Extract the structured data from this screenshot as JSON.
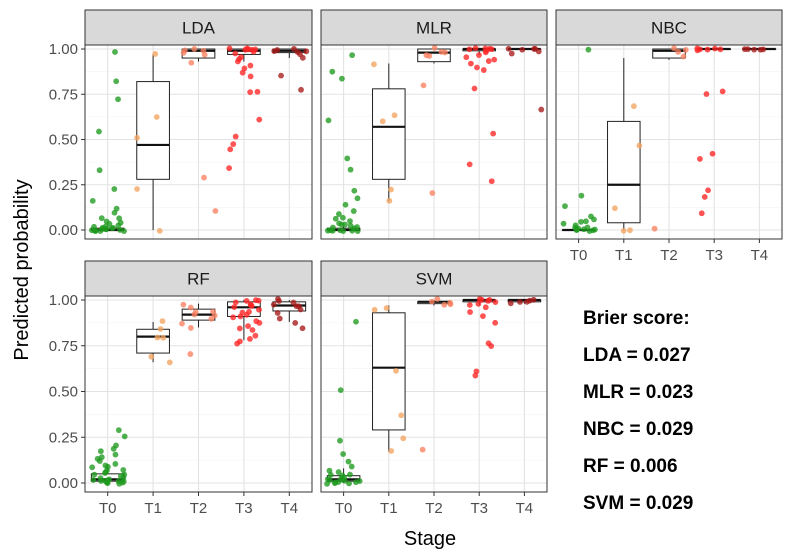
{
  "chart_data": {
    "type": "faceted box plot with jittered points",
    "xlabel": "Stage",
    "ylabel": "Predicted probability",
    "categories": [
      "T0",
      "T1",
      "T2",
      "T3",
      "T4"
    ],
    "y_ticks": [
      "0.00",
      "0.25",
      "0.50",
      "0.75",
      "1.00"
    ],
    "ylim": [
      0,
      1
    ],
    "colors": {
      "T0": "#1e9a1e",
      "T1": "#f4a460",
      "T2": "#fa8060",
      "T3": "#ff2424",
      "T4": "#a81a1a"
    },
    "panels": [
      {
        "name": "LDA",
        "boxes": [
          {
            "stage": "T0",
            "q1": 0.0,
            "median": 0.0,
            "q3": 0.01,
            "lo": 0.0,
            "hi": 0.02
          },
          {
            "stage": "T1",
            "q1": 0.28,
            "median": 0.47,
            "q3": 0.82,
            "lo": 0.0,
            "hi": 0.97
          },
          {
            "stage": "T2",
            "q1": 0.95,
            "median": 0.99,
            "q3": 1.0,
            "lo": 0.93,
            "hi": 1.0
          },
          {
            "stage": "T3",
            "q1": 0.97,
            "median": 0.99,
            "q3": 1.0,
            "lo": 0.93,
            "hi": 1.0
          },
          {
            "stage": "T4",
            "q1": 0.98,
            "median": 0.99,
            "q3": 1.0,
            "lo": 0.95,
            "hi": 1.0
          }
        ],
        "points": {
          "T0": [
            0.98,
            0.82,
            0.72,
            0.54,
            0.33,
            0.23,
            0.16,
            0.12,
            0.09,
            0.07,
            0.06,
            0.05,
            0.04,
            0.03,
            0.03,
            0.02,
            0.02,
            0.01,
            0.01,
            0.01,
            0.0,
            0.0,
            0.0,
            0.0,
            0.0,
            0.0,
            0.0,
            0.0,
            0.0,
            0.0
          ],
          "T1": [
            0.97,
            0.62,
            0.51,
            0.23,
            0.0
          ],
          "T2": [
            1.0,
            0.99,
            0.99,
            0.98,
            0.97,
            0.93,
            0.29,
            0.1
          ],
          "T3": [
            1.0,
            1.0,
            1.0,
            1.0,
            0.99,
            0.99,
            0.98,
            0.97,
            0.96,
            0.95,
            0.93,
            0.91,
            0.89,
            0.87,
            0.85,
            0.76,
            0.76,
            0.61,
            0.52,
            0.48,
            0.45,
            0.34
          ],
          "T4": [
            1.0,
            1.0,
            0.99,
            0.99,
            0.98,
            0.97,
            0.95,
            0.85,
            0.77
          ]
        }
      },
      {
        "name": "MLR",
        "boxes": [
          {
            "stage": "T0",
            "q1": 0.0,
            "median": 0.0,
            "q3": 0.01,
            "lo": 0.0,
            "hi": 0.02
          },
          {
            "stage": "T1",
            "q1": 0.28,
            "median": 0.57,
            "q3": 0.78,
            "lo": 0.16,
            "hi": 0.92
          },
          {
            "stage": "T2",
            "q1": 0.93,
            "median": 0.98,
            "q3": 1.0,
            "lo": 0.92,
            "hi": 1.0
          },
          {
            "stage": "T3",
            "q1": 0.99,
            "median": 1.0,
            "q3": 1.0,
            "lo": 0.97,
            "hi": 1.0
          },
          {
            "stage": "T4",
            "q1": 1.0,
            "median": 1.0,
            "q3": 1.0,
            "lo": 1.0,
            "hi": 1.0
          }
        ],
        "points": {
          "T0": [
            0.96,
            0.88,
            0.84,
            0.6,
            0.39,
            0.33,
            0.22,
            0.18,
            0.14,
            0.11,
            0.09,
            0.07,
            0.06,
            0.05,
            0.04,
            0.03,
            0.03,
            0.02,
            0.02,
            0.01,
            0.01,
            0.0,
            0.0,
            0.0,
            0.0,
            0.0,
            0.0,
            0.0
          ],
          "T1": [
            0.92,
            0.63,
            0.6,
            0.22,
            0.16
          ],
          "T2": [
            1.0,
            0.99,
            0.98,
            0.97,
            0.96,
            0.8,
            0.21
          ],
          "T3": [
            1.0,
            1.0,
            1.0,
            1.0,
            1.0,
            0.99,
            0.98,
            0.97,
            0.96,
            0.94,
            0.93,
            0.92,
            0.9,
            0.88,
            0.78,
            0.53,
            0.36,
            0.27
          ],
          "T4": [
            1.0,
            1.0,
            1.0,
            1.0,
            0.99,
            0.98,
            0.67
          ]
        }
      },
      {
        "name": "NBC",
        "boxes": [
          {
            "stage": "T0",
            "q1": 0.0,
            "median": 0.0,
            "q3": 0.0,
            "lo": 0.0,
            "hi": 0.01
          },
          {
            "stage": "T1",
            "q1": 0.04,
            "median": 0.25,
            "q3": 0.6,
            "lo": 0.0,
            "hi": 0.95
          },
          {
            "stage": "T2",
            "q1": 0.95,
            "median": 0.99,
            "q3": 1.0,
            "lo": 0.94,
            "hi": 1.0
          },
          {
            "stage": "T3",
            "q1": 1.0,
            "median": 1.0,
            "q3": 1.0,
            "lo": 1.0,
            "hi": 1.0
          },
          {
            "stage": "T4",
            "q1": 1.0,
            "median": 1.0,
            "q3": 1.0,
            "lo": 1.0,
            "hi": 1.0
          }
        ],
        "points": {
          "T0": [
            1.0,
            0.19,
            0.13,
            0.08,
            0.06,
            0.05,
            0.04,
            0.03,
            0.02,
            0.02,
            0.01,
            0.01,
            0.0,
            0.0,
            0.0,
            0.0,
            0.0,
            0.0
          ],
          "T1": [
            0.69,
            0.47,
            0.12,
            0.0,
            0.0
          ],
          "T2": [
            1.0,
            1.0,
            0.99,
            0.96,
            0.01
          ],
          "T3": [
            1.0,
            1.0,
            1.0,
            1.0,
            1.0,
            0.99,
            0.76,
            0.75,
            0.42,
            0.39,
            0.22,
            0.18,
            0.09
          ],
          "T4": [
            1.0,
            1.0,
            1.0,
            1.0,
            1.0
          ]
        }
      },
      {
        "name": "RF",
        "boxes": [
          {
            "stage": "T0",
            "q1": 0.01,
            "median": 0.02,
            "q3": 0.05,
            "lo": 0.0,
            "hi": 0.1
          },
          {
            "stage": "T1",
            "q1": 0.71,
            "median": 0.8,
            "q3": 0.84,
            "lo": 0.66,
            "hi": 0.88
          },
          {
            "stage": "T2",
            "q1": 0.89,
            "median": 0.92,
            "q3": 0.95,
            "lo": 0.85,
            "hi": 0.98
          },
          {
            "stage": "T3",
            "q1": 0.91,
            "median": 0.96,
            "q3": 0.99,
            "lo": 0.78,
            "hi": 1.0
          },
          {
            "stage": "T4",
            "q1": 0.94,
            "median": 0.97,
            "q3": 0.99,
            "lo": 0.88,
            "hi": 1.0
          }
        ],
        "points": {
          "T0": [
            0.29,
            0.25,
            0.21,
            0.19,
            0.17,
            0.15,
            0.14,
            0.13,
            0.12,
            0.11,
            0.1,
            0.09,
            0.08,
            0.07,
            0.07,
            0.06,
            0.05,
            0.05,
            0.04,
            0.04,
            0.03,
            0.03,
            0.02,
            0.02,
            0.02,
            0.01,
            0.01,
            0.01,
            0.01,
            0.0,
            0.0,
            0.0,
            0.0,
            0.0
          ],
          "T1": [
            0.88,
            0.84,
            0.8,
            0.79,
            0.69,
            0.66
          ],
          "T2": [
            0.98,
            0.96,
            0.94,
            0.93,
            0.92,
            0.91,
            0.9,
            0.87,
            0.85,
            0.7
          ],
          "T3": [
            1.0,
            1.0,
            0.99,
            0.99,
            0.98,
            0.97,
            0.97,
            0.96,
            0.95,
            0.94,
            0.93,
            0.92,
            0.91,
            0.9,
            0.89,
            0.88,
            0.86,
            0.85,
            0.83,
            0.81,
            0.79,
            0.77,
            0.76
          ],
          "T4": [
            1.0,
            0.99,
            0.99,
            0.98,
            0.97,
            0.96,
            0.95,
            0.93,
            0.9,
            0.87,
            0.84
          ]
        }
      },
      {
        "name": "SVM",
        "boxes": [
          {
            "stage": "T0",
            "q1": 0.01,
            "median": 0.02,
            "q3": 0.04,
            "lo": 0.0,
            "hi": 0.08
          },
          {
            "stage": "T1",
            "q1": 0.29,
            "median": 0.63,
            "q3": 0.93,
            "lo": 0.17,
            "hi": 0.97
          },
          {
            "stage": "T2",
            "q1": 0.98,
            "median": 0.99,
            "q3": 0.99,
            "lo": 0.97,
            "hi": 1.0
          },
          {
            "stage": "T3",
            "q1": 0.99,
            "median": 1.0,
            "q3": 1.0,
            "lo": 0.97,
            "hi": 1.0
          },
          {
            "stage": "T4",
            "q1": 0.99,
            "median": 1.0,
            "q3": 1.0,
            "lo": 0.98,
            "hi": 1.0
          }
        ],
        "points": {
          "T0": [
            0.88,
            0.51,
            0.23,
            0.16,
            0.12,
            0.09,
            0.07,
            0.06,
            0.05,
            0.04,
            0.04,
            0.03,
            0.03,
            0.02,
            0.02,
            0.02,
            0.01,
            0.01,
            0.01,
            0.0,
            0.0,
            0.0,
            0.0,
            0.0
          ],
          "T1": [
            0.96,
            0.95,
            0.61,
            0.37,
            0.24,
            0.18
          ],
          "T2": [
            1.0,
            0.99,
            0.99,
            0.98,
            0.97,
            0.18
          ],
          "T3": [
            1.0,
            1.0,
            1.0,
            1.0,
            0.99,
            0.98,
            0.97,
            0.96,
            0.94,
            0.91,
            0.88,
            0.76,
            0.75,
            0.61,
            0.59
          ],
          "T4": [
            1.0,
            1.0,
            0.99,
            0.99,
            0.98
          ]
        }
      }
    ]
  },
  "brier": {
    "title": "Brier score:",
    "lines": [
      "LDA = 0.027",
      "MLR = 0.023",
      "NBC = 0.029",
      "RF = 0.006",
      "SVM = 0.029"
    ]
  }
}
